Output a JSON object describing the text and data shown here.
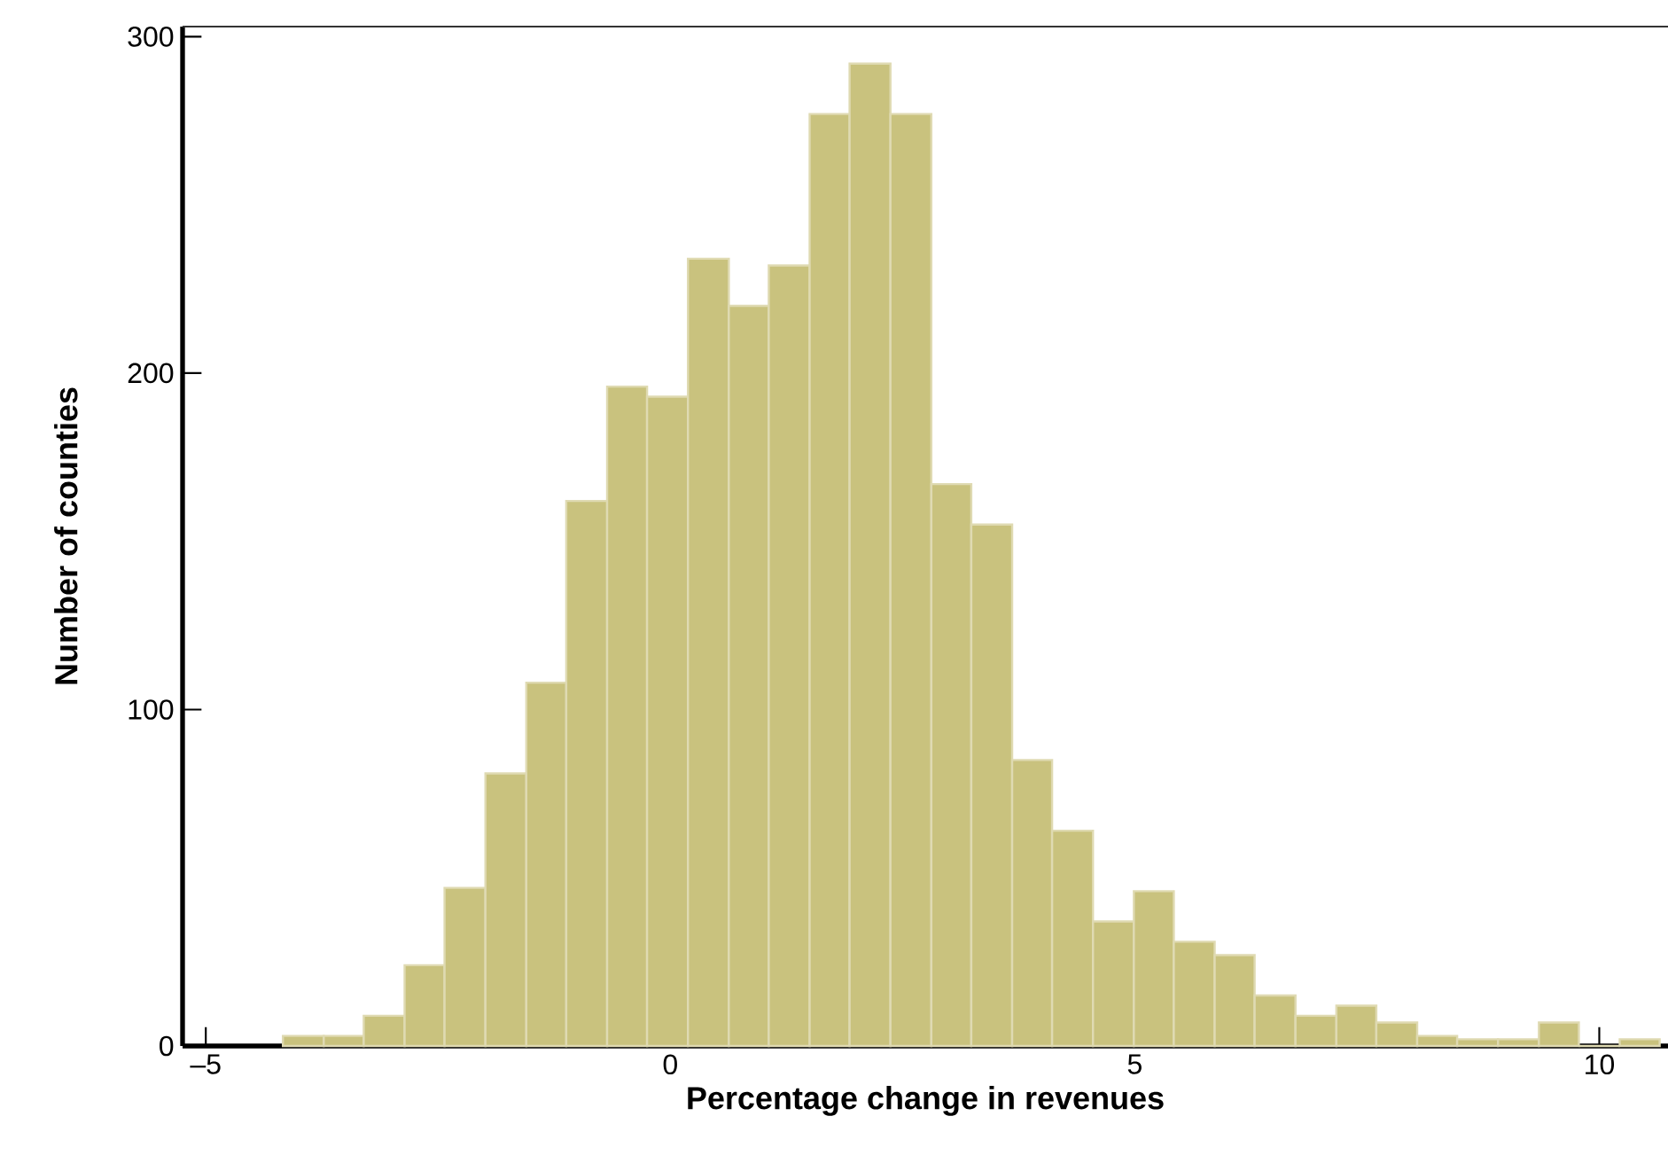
{
  "chart_data": {
    "type": "histogram",
    "xlabel": "Percentage change in revenues",
    "ylabel": "Number of counties",
    "bins": [
      -4.17,
      -3.73,
      -3.3,
      -2.86,
      -2.43,
      -1.99,
      -1.55,
      -1.12,
      -0.68,
      -0.25,
      0.19,
      0.63,
      1.06,
      1.5,
      1.93,
      2.37,
      2.81,
      3.24,
      3.68,
      4.11,
      4.55,
      4.99,
      5.42,
      5.86,
      6.29,
      6.73,
      7.17,
      7.6,
      8.04,
      8.47,
      8.91,
      9.35,
      9.78,
      10.22,
      10.65
    ],
    "values": [
      3,
      3,
      9,
      24,
      47,
      81,
      108,
      162,
      196,
      193,
      234,
      220,
      232,
      277,
      292,
      277,
      167,
      155,
      85,
      64,
      37,
      46,
      31,
      27,
      15,
      9,
      12,
      7,
      3,
      2,
      2,
      7,
      0,
      2
    ],
    "color": "#c9c27e",
    "xlim": [
      -5.25,
      10.74
    ],
    "ylim": [
      0,
      303
    ],
    "xticks": [
      {
        "value": -5,
        "label": "–5"
      },
      0,
      5,
      10
    ],
    "yticks": [
      0,
      100,
      200,
      300
    ],
    "grid": false
  }
}
